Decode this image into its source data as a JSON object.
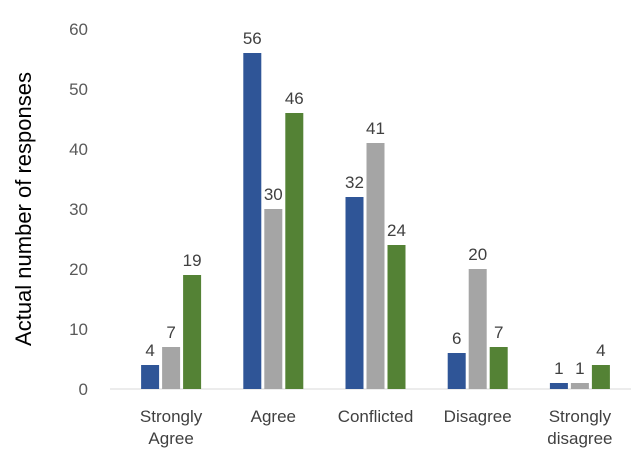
{
  "chart_data": {
    "type": "bar",
    "ylabel": "Actual number of responses",
    "xlabel": "",
    "ylim": [
      0,
      60
    ],
    "yticks": [
      0,
      10,
      20,
      30,
      40,
      50,
      60
    ],
    "grid": false,
    "legend": "none",
    "categories": [
      [
        "Strongly",
        "Agree"
      ],
      [
        "Agree"
      ],
      [
        "Conflicted"
      ],
      [
        "Disagree"
      ],
      [
        "Strongly",
        "disagree"
      ]
    ],
    "series": [
      {
        "color": "#2f5597",
        "values": [
          4,
          56,
          32,
          6,
          1
        ]
      },
      {
        "color": "#a5a5a5",
        "values": [
          7,
          30,
          41,
          20,
          1
        ]
      },
      {
        "color": "#548235",
        "values": [
          19,
          46,
          24,
          7,
          4
        ]
      }
    ]
  }
}
